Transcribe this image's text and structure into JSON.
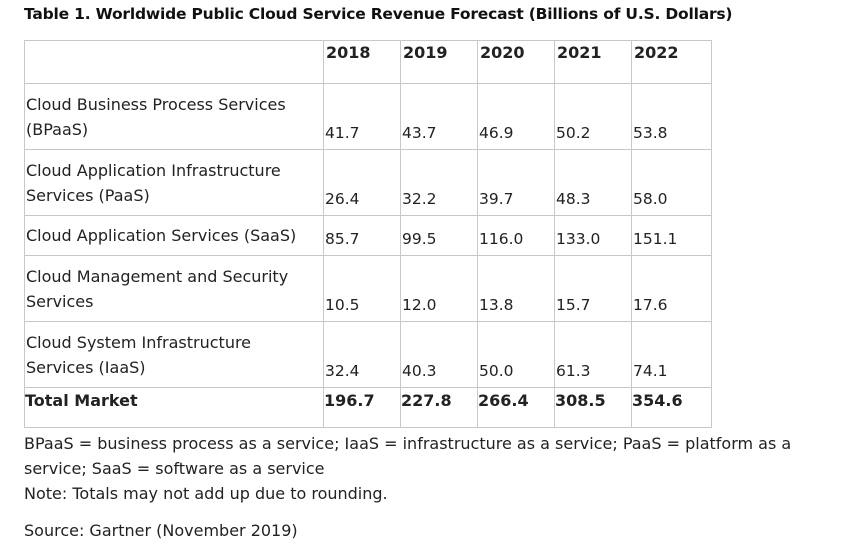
{
  "title": "Table 1. Worldwide Public Cloud Service Revenue Forecast (Billions of U.S. Dollars)",
  "table": {
    "corner": "",
    "years": [
      "2018",
      "2019",
      "2020",
      "2021",
      "2022"
    ],
    "rows": [
      {
        "label": "Cloud Business Process Services (BPaaS)",
        "values": [
          "41.7",
          "43.7",
          "46.9",
          "50.2",
          "53.8"
        ]
      },
      {
        "label": "Cloud Application Infrastructure Services (PaaS)",
        "values": [
          "26.4",
          "32.2",
          "39.7",
          "48.3",
          "58.0"
        ]
      },
      {
        "label": "Cloud Application Services (SaaS)",
        "values": [
          "85.7",
          "99.5",
          "116.0",
          "133.0",
          "151.1"
        ]
      },
      {
        "label": "Cloud Management and Security Services",
        "values": [
          "10.5",
          "12.0",
          "13.8",
          "15.7",
          "17.6"
        ]
      },
      {
        "label": "Cloud System Infrastructure Services (IaaS)",
        "values": [
          "32.4",
          "40.3",
          "50.0",
          "61.3",
          "74.1"
        ]
      }
    ],
    "total": {
      "label": "Total Market",
      "values": [
        "196.7",
        "227.8",
        "266.4",
        "308.5",
        "354.6"
      ]
    }
  },
  "notes": {
    "abbreviations": "BPaaS = business process as a service; IaaS = infrastructure as a service; PaaS = platform as a service; SaaS = software as a service",
    "rounding": "Note: Totals may not add up due to rounding.",
    "source": "Source: Gartner (November 2019)"
  }
}
